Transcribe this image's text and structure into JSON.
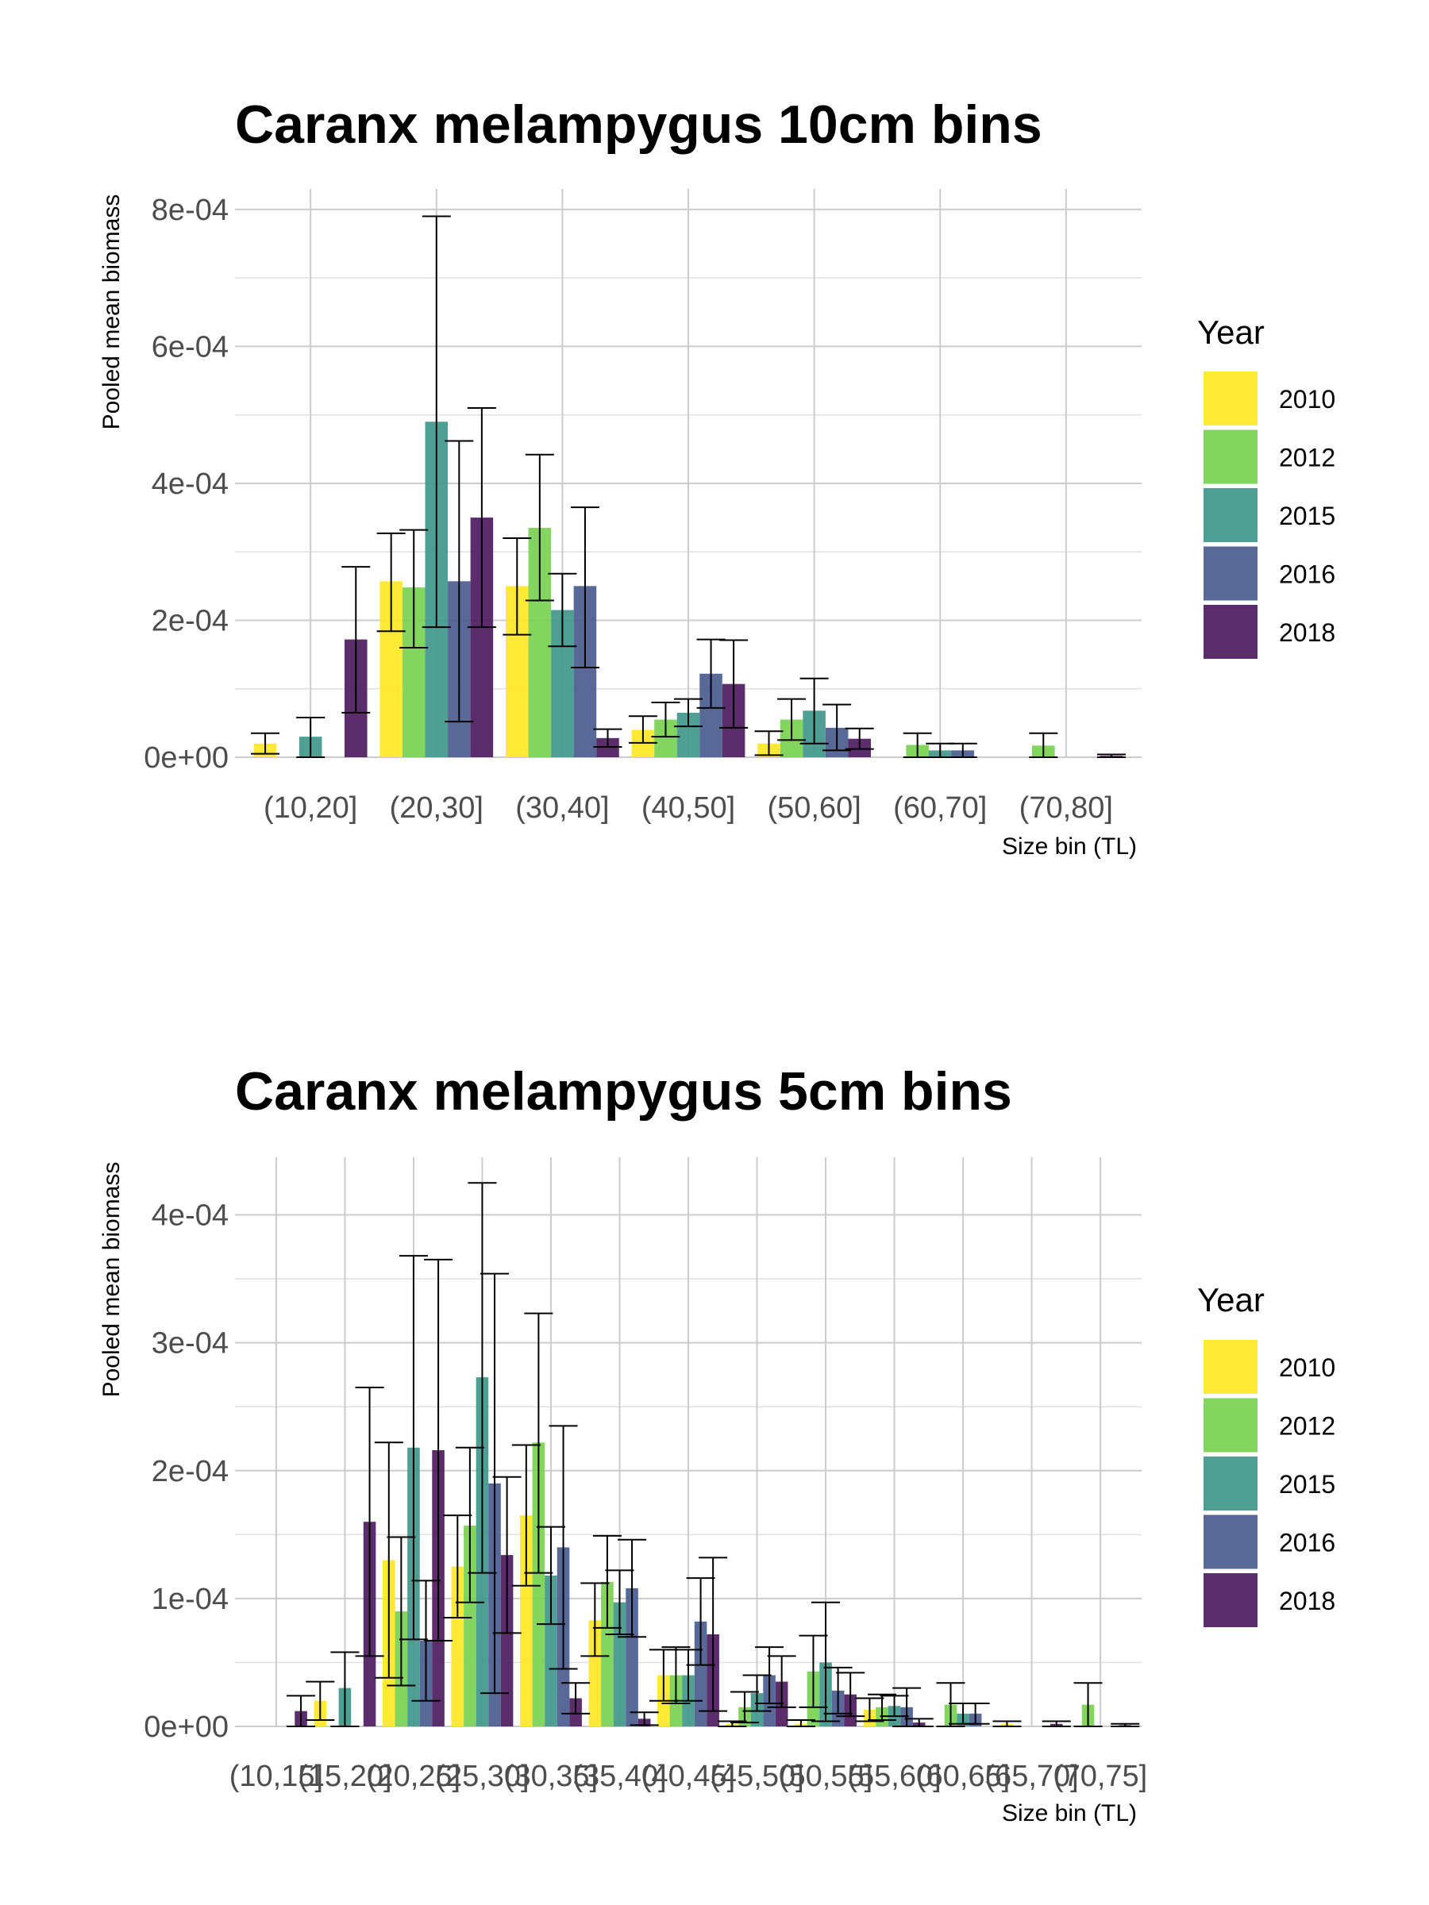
{
  "chart_data": [
    {
      "type": "bar",
      "title": "Caranx melampygus 10cm bins",
      "xlabel": "Size bin (TL)",
      "ylabel": "Pooled mean biomass",
      "ylim": [
        0,
        0.00083
      ],
      "yticks": [
        "0e+00",
        "2e-04",
        "4e-04",
        "6e-04",
        "8e-04"
      ],
      "grid": true,
      "legend_position": "right",
      "legend_title": "Year",
      "categories": [
        "(10,20]",
        "(20,30]",
        "(30,40]",
        "(40,50]",
        "(50,60]",
        "(60,70]",
        "(70,80]"
      ],
      "series": [
        {
          "name": "2010",
          "color": "#FDE725",
          "values": [
            2e-05,
            0.000257,
            0.00025,
            4e-05,
            2e-05,
            null,
            null
          ],
          "err_lo": [
            5e-06,
            0.000184,
            0.000179,
            2.1e-05,
            3e-06,
            null,
            null
          ],
          "err_hi": [
            3.5e-05,
            0.000327,
            0.00032,
            6e-05,
            3.8e-05,
            null,
            null
          ]
        },
        {
          "name": "2012",
          "color": "#7AD151",
          "values": [
            null,
            0.000248,
            0.000335,
            5.5e-05,
            5.5e-05,
            1.8e-05,
            1.7e-05
          ],
          "err_lo": [
            null,
            0.00016,
            0.000229,
            3e-05,
            2.5e-05,
            0.0,
            0.0
          ],
          "err_hi": [
            null,
            0.000332,
            0.000442,
            8e-05,
            8.5e-05,
            3.5e-05,
            3.5e-05
          ]
        },
        {
          "name": "2015",
          "color": "#41978B",
          "values": [
            3e-05,
            0.00049,
            0.000215,
            6.5e-05,
            6.8e-05,
            1e-05,
            null
          ],
          "err_lo": [
            0.0,
            0.00019,
            0.000162,
            4.5e-05,
            2e-05,
            0.0,
            null
          ],
          "err_hi": [
            5.8e-05,
            0.00079,
            0.000268,
            8.5e-05,
            0.000115,
            2e-05,
            null
          ]
        },
        {
          "name": "2016",
          "color": "#4A5C8F",
          "values": [
            null,
            0.000257,
            0.00025,
            0.000122,
            4.3e-05,
            1e-05,
            null
          ],
          "err_lo": [
            null,
            5.2e-05,
            0.000131,
            7.2e-05,
            1e-05,
            0.0,
            null
          ],
          "err_hi": [
            null,
            0.000462,
            0.000365,
            0.000172,
            7.7e-05,
            2e-05,
            null
          ]
        },
        {
          "name": "2018",
          "color": "#4E1B5E",
          "values": [
            0.000172,
            0.00035,
            2.8e-05,
            0.000107,
            2.7e-05,
            null,
            2e-06
          ],
          "err_lo": [
            6.5e-05,
            0.00019,
            1.5e-05,
            4.3e-05,
            1.2e-05,
            null,
            0.0
          ],
          "err_hi": [
            0.000278,
            0.00051,
            4.1e-05,
            0.000171,
            4.2e-05,
            null,
            4e-06
          ]
        }
      ]
    },
    {
      "type": "bar",
      "title": "Caranx melampygus 5cm bins",
      "xlabel": "Size bin (TL)",
      "ylabel": "Pooled mean biomass",
      "ylim": [
        0,
        0.000445
      ],
      "yticks": [
        "0e+00",
        "1e-04",
        "2e-04",
        "3e-04",
        "4e-04"
      ],
      "grid": true,
      "legend_position": "right",
      "legend_title": "Year",
      "categories": [
        "(10,15]",
        "(15,20]",
        "(20,25]",
        "(25,30]",
        "(30,35]",
        "(35,40]",
        "(40,45]",
        "(45,50]",
        "(50,55]",
        "(55,60]",
        "(60,65]",
        "(65,70]",
        "(70,75]"
      ],
      "series": [
        {
          "name": "2010",
          "color": "#FDE725",
          "values": [
            null,
            2e-05,
            0.00013,
            0.000125,
            0.000165,
            8.3e-05,
            4e-05,
            2e-06,
            2e-06,
            1.3e-05,
            null,
            2e-06,
            null
          ],
          "err_lo": [
            null,
            5e-06,
            3.8e-05,
            8.5e-05,
            0.00011,
            5.5e-05,
            2e-05,
            0.0,
            0.0,
            4e-06,
            null,
            0.0,
            null
          ],
          "err_hi": [
            null,
            3.5e-05,
            0.000222,
            0.000165,
            0.00022,
            0.000112,
            6e-05,
            4e-06,
            5e-06,
            2.2e-05,
            null,
            4e-06,
            null
          ]
        },
        {
          "name": "2012",
          "color": "#7AD151",
          "values": [
            null,
            null,
            9e-05,
            0.000157,
            0.000222,
            0.000113,
            4e-05,
            1.5e-05,
            4.3e-05,
            1.5e-05,
            1.7e-05,
            null,
            1.7e-05
          ],
          "err_lo": [
            null,
            null,
            3.2e-05,
            9.7e-05,
            0.00012,
            7.7e-05,
            1.8e-05,
            3e-06,
            1.5e-05,
            5e-06,
            0.0,
            null,
            0.0
          ],
          "err_hi": [
            null,
            null,
            0.000148,
            0.000218,
            0.000323,
            0.000149,
            6.2e-05,
            2.7e-05,
            7.1e-05,
            2.5e-05,
            3.4e-05,
            null,
            3.4e-05
          ]
        },
        {
          "name": "2015",
          "color": "#41978B",
          "values": [
            null,
            3e-05,
            0.000218,
            0.000273,
            0.000118,
            9.7e-05,
            4e-05,
            2.6e-05,
            5e-05,
            1.6e-05,
            1e-05,
            null,
            null
          ],
          "err_lo": [
            null,
            0.0,
            6.8e-05,
            0.00012,
            8e-05,
            7.2e-05,
            2e-05,
            1.2e-05,
            4e-06,
            8e-06,
            2e-06,
            null,
            null
          ],
          "err_hi": [
            null,
            5.8e-05,
            0.000368,
            0.000425,
            0.000156,
            0.000122,
            6e-05,
            4e-05,
            9.7e-05,
            2.4e-05,
            1.8e-05,
            null,
            null
          ]
        },
        {
          "name": "2016",
          "color": "#4A5C8F",
          "values": [
            null,
            null,
            6.7e-05,
            0.00019,
            0.00014,
            0.000108,
            8.2e-05,
            4e-05,
            2.8e-05,
            1.5e-05,
            1e-05,
            null,
            null
          ],
          "err_lo": [
            null,
            null,
            2e-05,
            2.6e-05,
            4.5e-05,
            7e-05,
            4.8e-05,
            1.8e-05,
            1e-05,
            0.0,
            2e-06,
            null,
            null
          ],
          "err_hi": [
            null,
            null,
            0.000114,
            0.000354,
            0.000235,
            0.000146,
            0.000116,
            6.2e-05,
            4.6e-05,
            3e-05,
            1.8e-05,
            null,
            null
          ]
        },
        {
          "name": "2018",
          "color": "#4E1B5E",
          "values": [
            1.2e-05,
            0.00016,
            0.000216,
            0.000134,
            2.2e-05,
            6e-06,
            7.2e-05,
            3.5e-05,
            2.5e-05,
            3e-06,
            null,
            2e-06,
            1e-06
          ],
          "err_lo": [
            0.0,
            5.5e-05,
            6.7e-05,
            7.3e-05,
            1e-05,
            1e-06,
            1.2e-05,
            1.5e-05,
            8e-06,
            0.0,
            null,
            0.0,
            0.0
          ],
          "err_hi": [
            2.4e-05,
            0.000265,
            0.000365,
            0.000195,
            3.4e-05,
            1.1e-05,
            0.000132,
            5.5e-05,
            4.2e-05,
            6e-06,
            null,
            4e-06,
            2e-06
          ]
        }
      ]
    }
  ]
}
